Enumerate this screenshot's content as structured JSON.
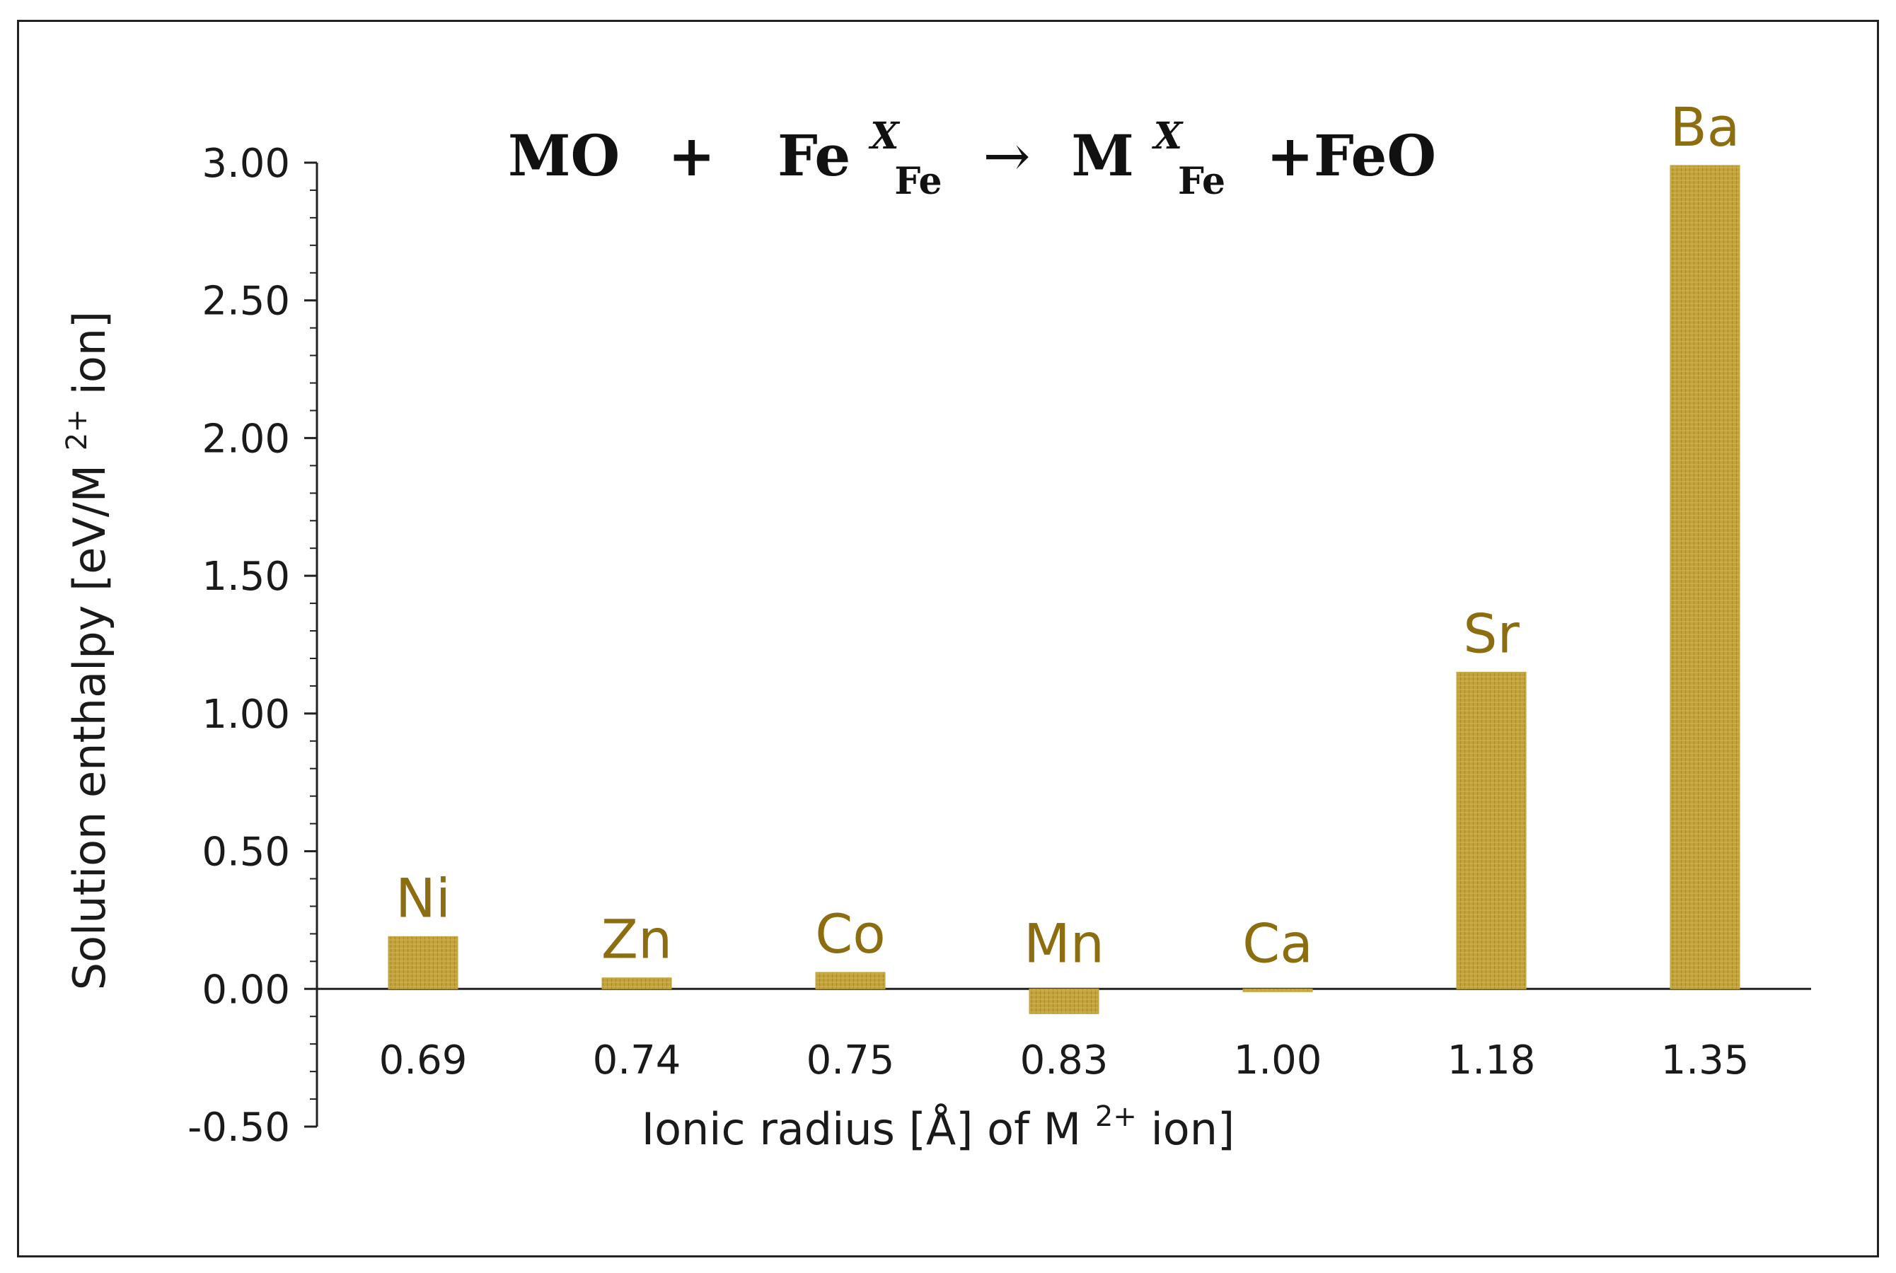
{
  "chart_data": {
    "type": "bar",
    "equation": {
      "left": "MO",
      "plus": "+",
      "fe_base": "Fe",
      "sup": "X",
      "sub": "Fe",
      "arrow": "→",
      "m_base": "M",
      "right": "+FeO"
    },
    "categories": [
      "0.69",
      "0.74",
      "0.75",
      "0.83",
      "1.00",
      "1.18",
      "1.35"
    ],
    "bar_labels": [
      "Ni",
      "Zn",
      "Co",
      "Mn",
      "Ca",
      "Sr",
      "Ba"
    ],
    "values": [
      0.19,
      0.04,
      0.06,
      -0.09,
      -0.01,
      1.15,
      2.99
    ],
    "y_ticks": [
      "3.00",
      "2.50",
      "2.00",
      "1.50",
      "1.00",
      "0.50",
      "0.00",
      "-0.50"
    ],
    "ylim": [
      -0.5,
      3.0
    ],
    "xlabel": {
      "before": "Ionic radius [Å] of M",
      "sup": "2+",
      "after": " ion]"
    },
    "ylabel": {
      "before": "Solution enthalpy [eV/M",
      "sup": "2+",
      "after": " ion]"
    },
    "colors": {
      "bar": "#c2a23a",
      "bar_hatch": "#a88a25",
      "label": "#8c6d0f"
    }
  }
}
